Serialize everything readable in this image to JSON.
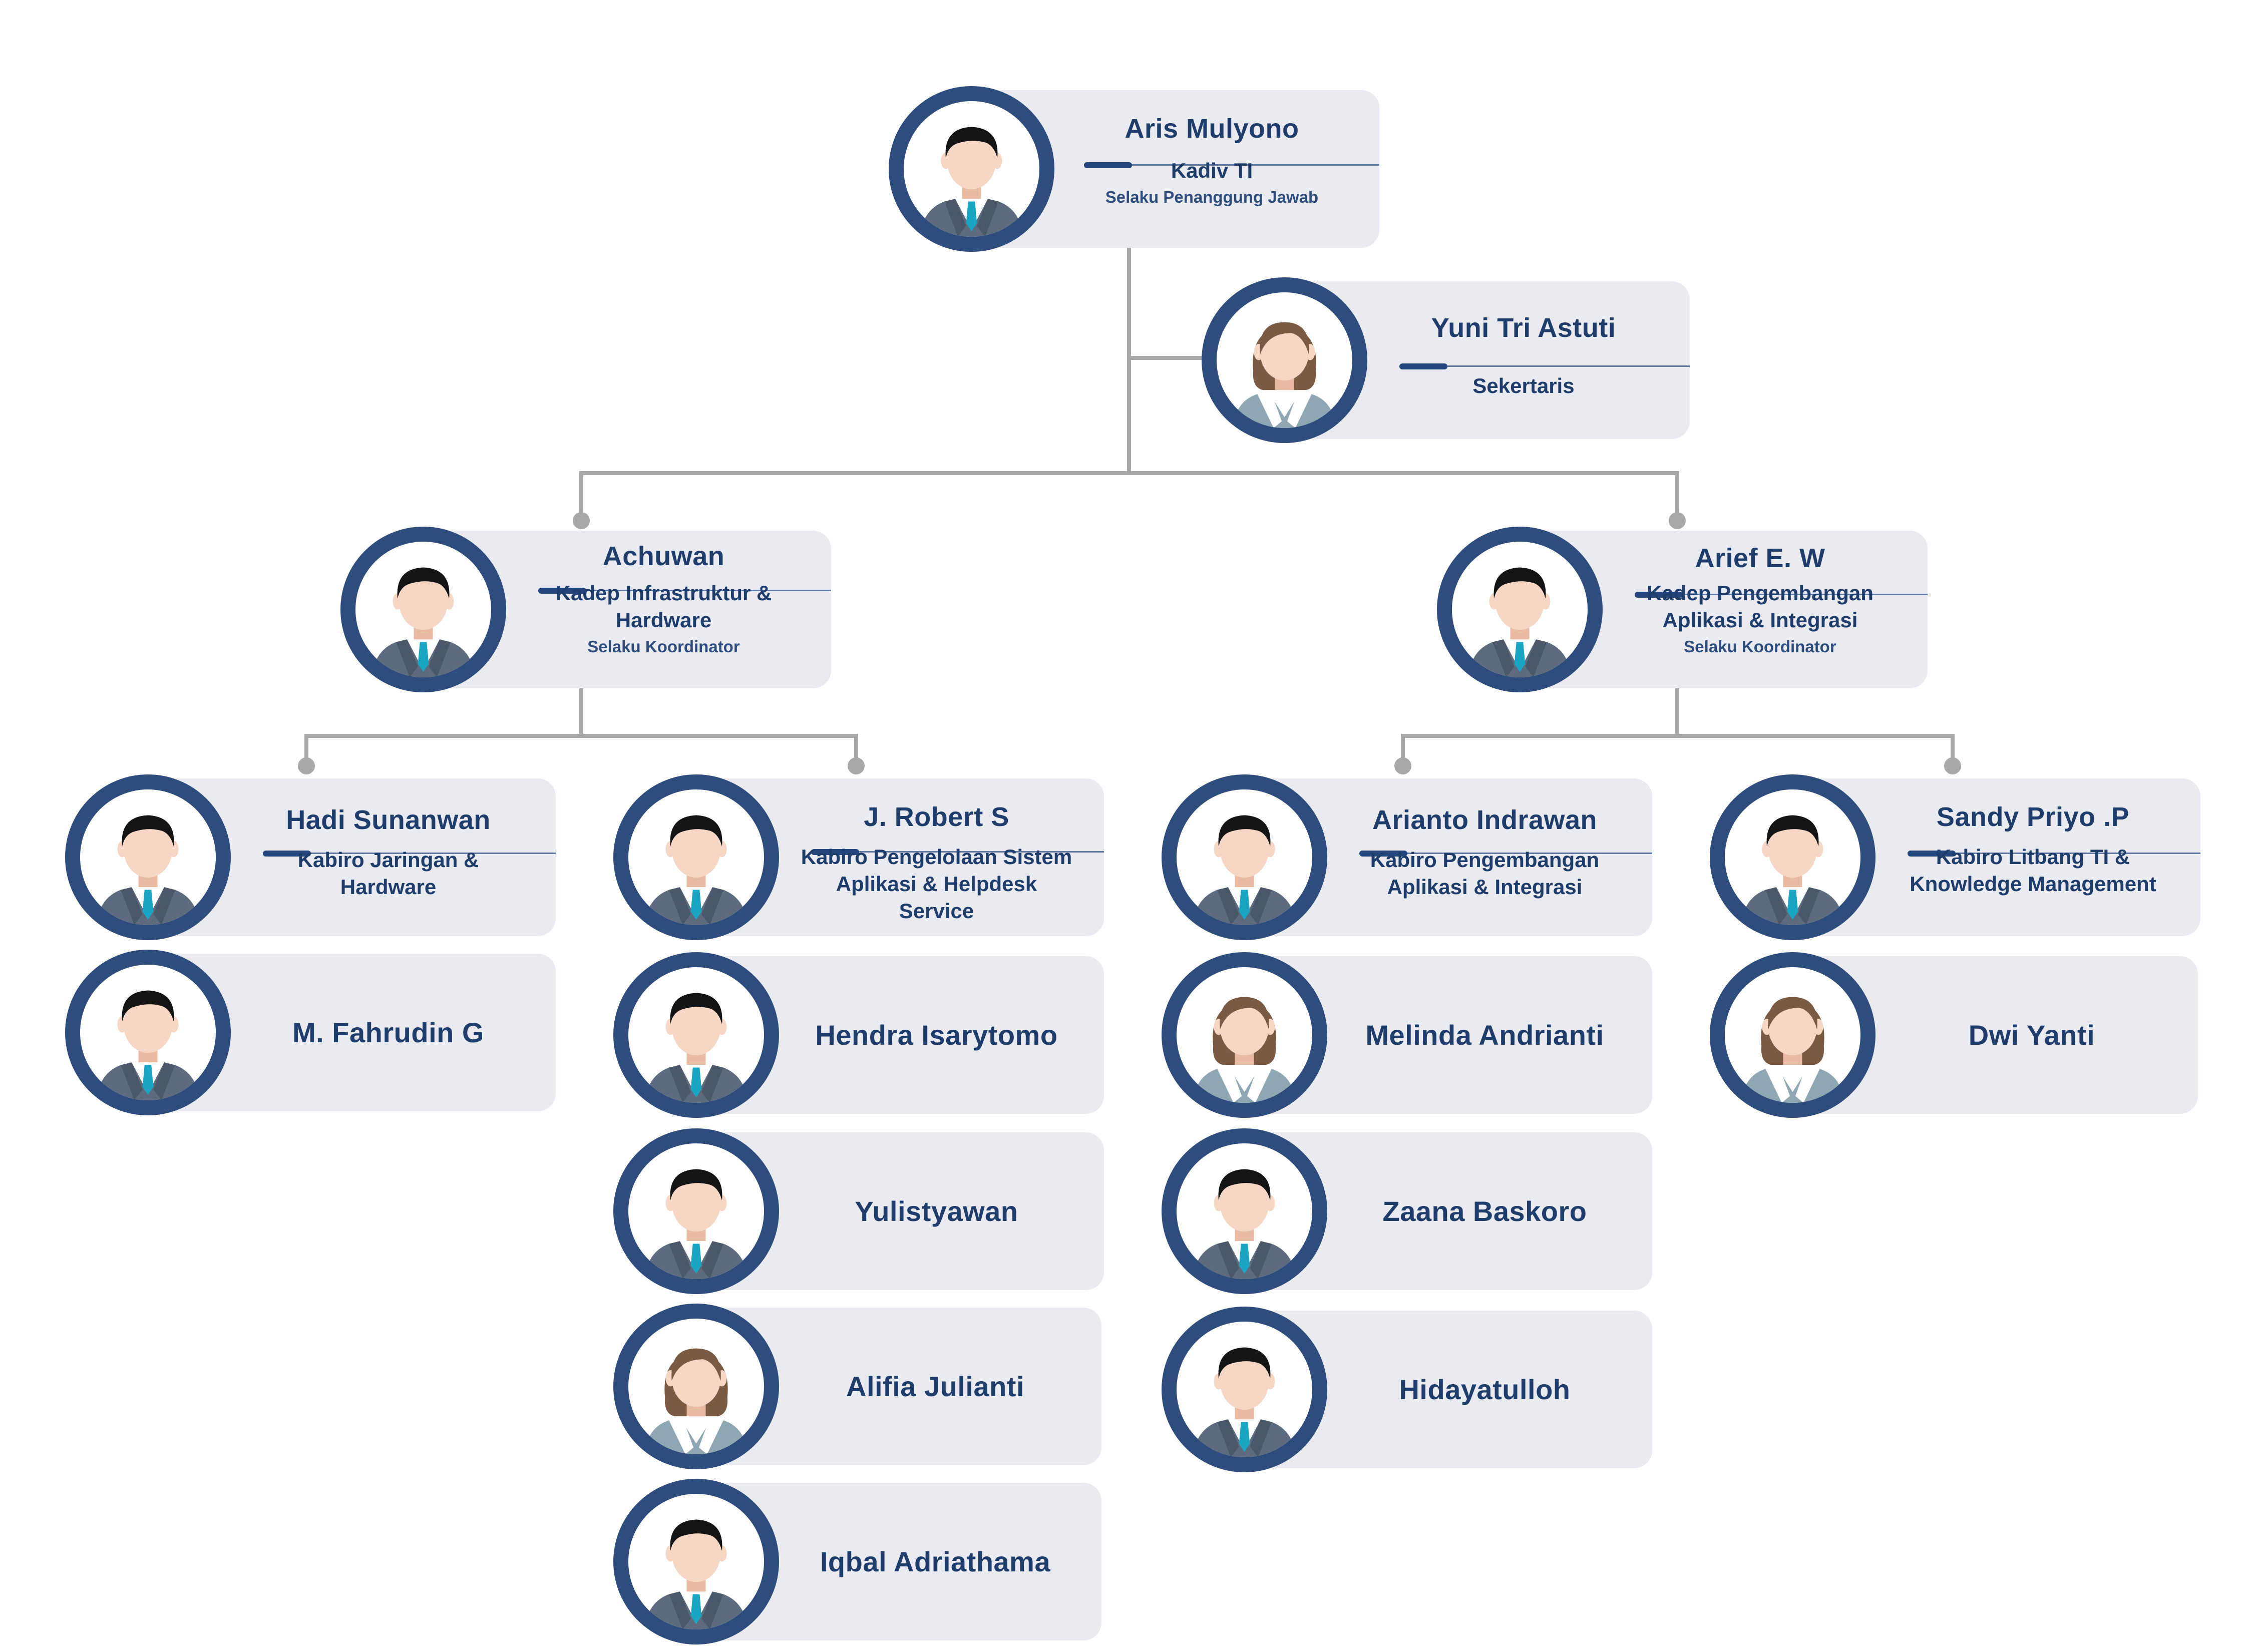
{
  "colors": {
    "avatar_ring": "#2e4d7d",
    "card_fill": "#e9ebf1",
    "text": "#1f3d6b",
    "connector": "#a8a8a8",
    "tie": "#19a6c4",
    "hair_male": "#141414",
    "hair_female": "#7a5a43",
    "suit": "#5c6b7d"
  },
  "chart": {
    "head": {
      "name": "Aris Mulyono",
      "title": "Kadiv TI",
      "subtitle": "Selaku Penanggung Jawab",
      "avatar": "male-avatar-icon"
    },
    "secretary": {
      "name": "Yuni Tri Astuti",
      "title": "Sekertaris",
      "avatar": "female-avatar-icon"
    },
    "departments": [
      {
        "name": "Achuwan",
        "title": "Kadep Infrastruktur & Hardware",
        "subtitle": "Selaku Koordinator",
        "avatar": "male-avatar-icon",
        "bureaus": [
          {
            "name": "Hadi Sunanwan",
            "title": "Kabiro Jaringan & Hardware",
            "avatar": "male-avatar-icon",
            "staff": [
              {
                "name": "M. Fahrudin G",
                "avatar": "male-avatar-icon"
              }
            ]
          },
          {
            "name": "J. Robert S",
            "title": "Kabiro Pengelolaan Sistem Aplikasi & Helpdesk Service",
            "avatar": "male-avatar-icon",
            "staff": [
              {
                "name": "Hendra Isarytomo",
                "avatar": "male-avatar-icon"
              },
              {
                "name": "Yulistyawan",
                "avatar": "male-avatar-icon"
              },
              {
                "name": "Alifia Julianti",
                "avatar": "female-avatar-icon"
              },
              {
                "name": "Iqbal Adriathama",
                "avatar": "male-avatar-icon"
              }
            ]
          }
        ]
      },
      {
        "name": "Arief E. W",
        "title": "Kadep Pengembangan Aplikasi & Integrasi",
        "subtitle": "Selaku Koordinator",
        "avatar": "male-avatar-icon",
        "bureaus": [
          {
            "name": "Arianto Indrawan",
            "title": "Kabiro Pengembangan Aplikasi & Integrasi",
            "avatar": "male-avatar-icon",
            "staff": [
              {
                "name": "Melinda Andrianti",
                "avatar": "female-avatar-icon"
              },
              {
                "name": "Zaana Baskoro",
                "avatar": "male-avatar-icon"
              },
              {
                "name": "Hidayatulloh",
                "avatar": "male-avatar-icon"
              }
            ]
          },
          {
            "name": "Sandy Priyo .P",
            "title": "Kabiro Litbang TI & Knowledge Management",
            "avatar": "male-avatar-icon",
            "staff": [
              {
                "name": "Dwi Yanti",
                "avatar": "female-avatar-icon"
              }
            ]
          }
        ]
      }
    ]
  }
}
